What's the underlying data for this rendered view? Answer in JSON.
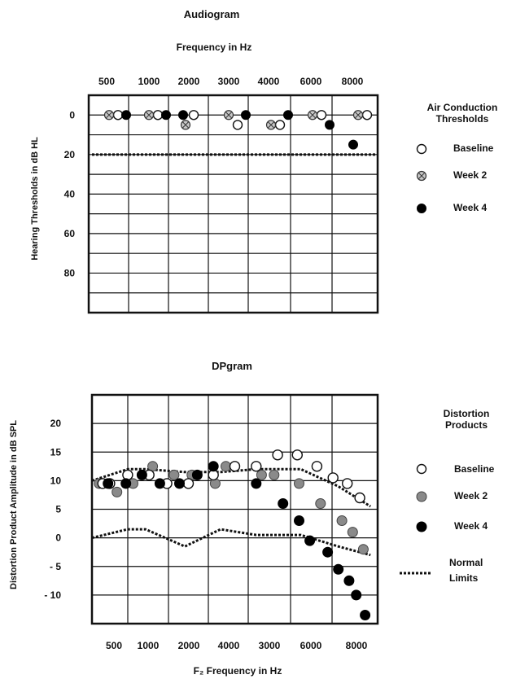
{
  "charts": {
    "audiogram": {
      "title": "Audiogram",
      "top_axis_label": "Frequency in Hz",
      "ylabel": "Hearing Thresholds in dB HL",
      "legend_title": "Air Conduction Thresholds",
      "legend_items": [
        "Baseline",
        "Week 2",
        "Week 4"
      ]
    },
    "dpgram": {
      "title": "DPgram",
      "xlabel": "F₂ Frequency in Hz",
      "ylabel": "Distortion Product Amplitude in dB SPL",
      "legend_title": "Distortion Products",
      "legend_items": [
        "Baseline",
        "Week 2",
        "Week 4"
      ],
      "legend_normal": "Normal Limits"
    }
  },
  "colors": {
    "baseline": "#ffffff",
    "week2_audiogram": "#c8c8c8",
    "week2_dpgram": "#8a8a8a",
    "week4": "#000000",
    "grid": "#111111"
  },
  "chart_data": [
    {
      "type": "scatter",
      "title": "Audiogram",
      "x_tick_labels": [
        "500",
        "1000",
        "2000",
        "3000",
        "4000",
        "6000",
        "8000"
      ],
      "y_tick_labels": [
        "0",
        "20",
        "40",
        "60",
        "80"
      ],
      "ylim": [
        -10,
        100
      ],
      "y_inverted": true,
      "reference_line": {
        "style": "dotted",
        "y": 20
      },
      "series": [
        {
          "name": "Baseline",
          "x": [
            "500",
            "1000",
            "2000",
            "3000",
            "4000",
            "6000",
            "8000"
          ],
          "values": [
            0,
            0,
            0,
            5,
            5,
            0,
            0
          ]
        },
        {
          "name": "Week 2",
          "x": [
            "500",
            "1000",
            "2000",
            "3000",
            "4000",
            "6000",
            "8000"
          ],
          "values": [
            0,
            0,
            5,
            0,
            5,
            0,
            0
          ]
        },
        {
          "name": "Week 4",
          "x": [
            "500",
            "1000",
            "2000",
            "3000",
            "4000",
            "6000",
            "8000"
          ],
          "values": [
            0,
            0,
            0,
            0,
            0,
            5,
            15
          ]
        }
      ],
      "grid": true,
      "legend": "right"
    },
    {
      "type": "scatter",
      "title": "DPgram",
      "x_tick_labels": [
        "500",
        "1000",
        "2000",
        "4000",
        "3000",
        "6000",
        "8000"
      ],
      "y_tick_labels": [
        "20",
        "15",
        "10",
        "5",
        "0",
        "- 5",
        "- 10"
      ],
      "ylim": [
        -15,
        25
      ],
      "grid": true,
      "legend": "right",
      "series": [
        {
          "name": "Baseline",
          "x": [
            0.3,
            0.5,
            1.0,
            1.6,
            2.1,
            2.7,
            3.4,
            4.0,
            4.6,
            5.2,
            5.75,
            6.3,
            6.75,
            7.15,
            7.5
          ],
          "values": [
            9.5,
            9.5,
            11,
            11,
            9.5,
            9.5,
            11,
            12.5,
            12.5,
            14.5,
            14.5,
            12.5,
            10.5,
            9.5,
            7
          ]
        },
        {
          "name": "Week 2",
          "x": [
            0.2,
            0.7,
            1.15,
            1.7,
            2.3,
            2.8,
            3.45,
            3.75,
            4.75,
            5.1,
            5.8,
            6.4,
            7.0,
            7.3,
            7.6
          ],
          "values": [
            9.5,
            8,
            9.5,
            12.5,
            11,
            11,
            9.5,
            12.5,
            11,
            11,
            9.5,
            6,
            3,
            1,
            -2
          ]
        },
        {
          "name": "Week 4",
          "x": [
            0.45,
            0.95,
            1.4,
            1.9,
            2.45,
            2.95,
            3.4,
            4.6,
            5.35,
            5.8,
            6.1,
            6.6,
            6.9,
            7.2,
            7.4,
            7.65
          ],
          "values": [
            9.5,
            9.5,
            11,
            9.5,
            9.5,
            11,
            12.5,
            9.5,
            6,
            3,
            -0.5,
            -2.5,
            -5.5,
            -7.5,
            -10,
            -13.5
          ]
        },
        {
          "name": "Normal Limits upper",
          "style": "dotted",
          "x": [
            0,
            1.0,
            1.5,
            2.6,
            3.6,
            4.6,
            5.85,
            6.9,
            7.8
          ],
          "values": [
            10,
            12,
            12,
            11.5,
            11.5,
            12,
            12,
            9,
            5.5
          ]
        },
        {
          "name": "Normal Limits lower",
          "style": "dotted",
          "x": [
            0,
            1.0,
            1.5,
            2.6,
            3.6,
            4.6,
            5.85,
            6.9,
            7.8
          ],
          "values": [
            0,
            1.5,
            1.5,
            -1.5,
            1.5,
            0.5,
            0.5,
            -1.5,
            -3
          ]
        }
      ]
    }
  ]
}
